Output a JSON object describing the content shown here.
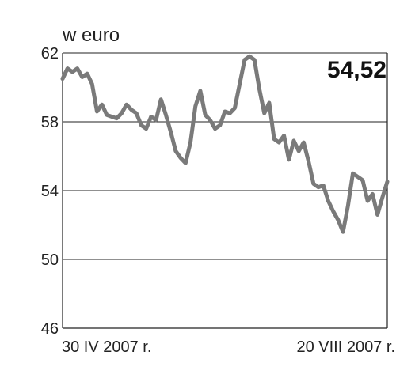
{
  "chart_data": {
    "type": "line",
    "title": "",
    "ylabel": "w euro",
    "xlabel": "",
    "ylim": [
      46,
      62
    ],
    "yticks": [
      62,
      58,
      54,
      50,
      46
    ],
    "grid": true,
    "x_labels": {
      "start": "30 IV 2007 r.",
      "end": "20 VIII 2007 r."
    },
    "last_value_label": "54,52",
    "series": [
      {
        "color": "#7a7a7a",
        "values": [
          60.5,
          61.1,
          60.9,
          61.1,
          60.6,
          60.8,
          60.2,
          58.6,
          59.0,
          58.4,
          58.3,
          58.2,
          58.5,
          59.0,
          58.7,
          58.5,
          57.8,
          57.6,
          58.3,
          58.1,
          59.3,
          58.4,
          57.4,
          56.3,
          55.9,
          55.6,
          56.8,
          58.9,
          59.8,
          58.4,
          58.1,
          57.6,
          57.8,
          58.6,
          58.5,
          58.8,
          60.2,
          61.6,
          61.8,
          61.6,
          59.9,
          58.5,
          59.1,
          57.0,
          56.8,
          57.2,
          55.8,
          56.9,
          56.3,
          56.8,
          55.7,
          54.4,
          54.2,
          54.3,
          53.4,
          52.8,
          52.3,
          51.6,
          53.1,
          55.0,
          54.8,
          54.6,
          53.4,
          53.8,
          52.6,
          53.6,
          54.52
        ]
      }
    ]
  }
}
